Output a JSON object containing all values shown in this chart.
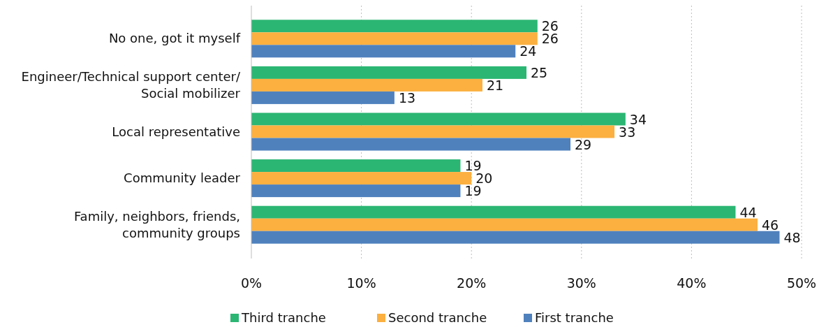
{
  "chart_data": {
    "type": "bar",
    "orientation": "horizontal",
    "categories": [
      "No one, got it myself",
      "Engineer/Technical support center/\nSocial mobilizer",
      "Local representative",
      "Community leader",
      "Family, neighbors, friends,\ncommunity groups"
    ],
    "series": [
      {
        "name": "Third tranche",
        "color": "#2bb673",
        "values": [
          26,
          25,
          34,
          19,
          44
        ]
      },
      {
        "name": "Second tranche",
        "color": "#fbb040",
        "values": [
          26,
          21,
          33,
          20,
          46
        ]
      },
      {
        "name": "First tranche",
        "color": "#4f81bd",
        "values": [
          24,
          13,
          29,
          19,
          48
        ]
      }
    ],
    "xlim": [
      0,
      50
    ],
    "xticks": [
      {
        "value": 0,
        "label": "0%"
      },
      {
        "value": 10,
        "label": "10%"
      },
      {
        "value": 20,
        "label": "20%"
      },
      {
        "value": 30,
        "label": "30%"
      },
      {
        "value": 40,
        "label": "40%"
      },
      {
        "value": 50,
        "label": "50%"
      }
    ],
    "grid": "x",
    "data_labels": true,
    "legend": "bottom"
  }
}
